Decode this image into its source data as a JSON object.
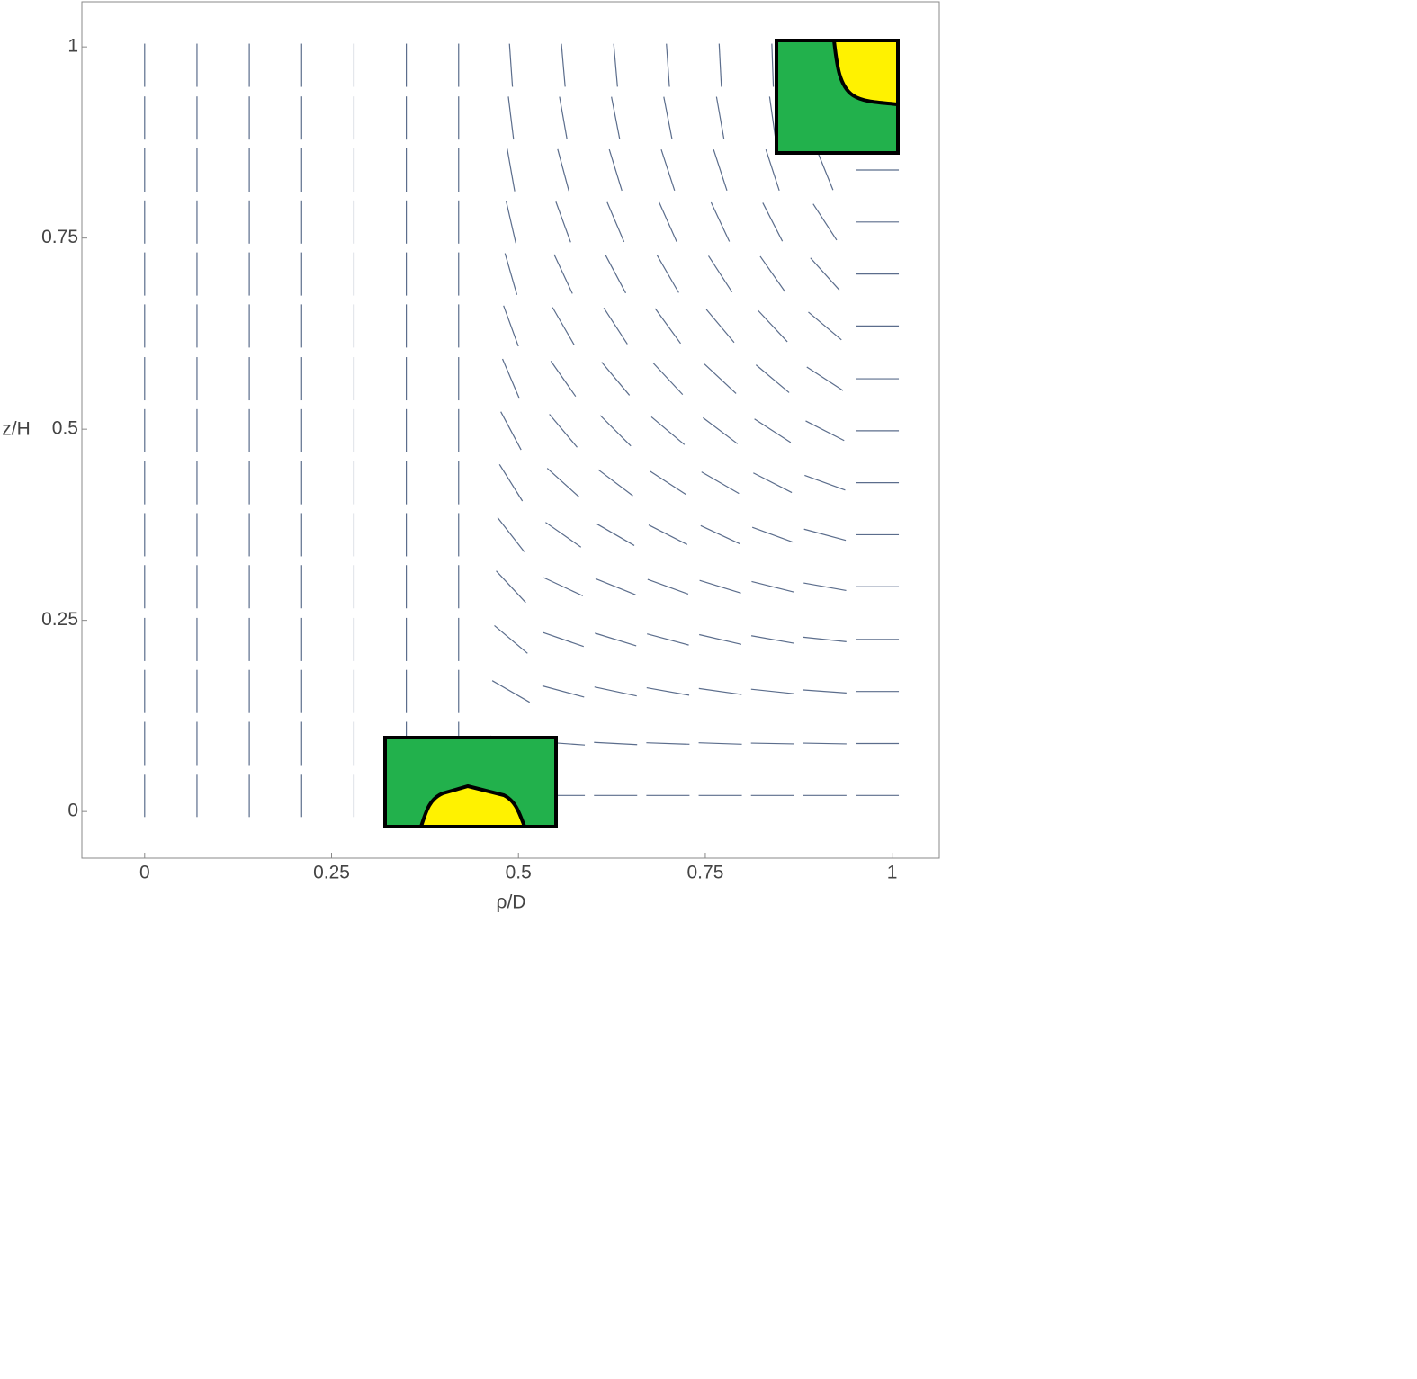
{
  "chart_data": {
    "type": "vector_field",
    "x_label": "ρ/D",
    "y_label": "z/H",
    "x": [
      0,
      0.07,
      0.14,
      0.21,
      0.28,
      0.35,
      0.42,
      0.49,
      0.56,
      0.63,
      0.7,
      0.77,
      0.84,
      0.91,
      0.98
    ],
    "y": [
      0.021,
      0.089,
      0.157,
      0.225,
      0.294,
      0.362,
      0.43,
      0.498,
      0.566,
      0.635,
      0.703,
      0.771,
      0.839,
      0.907,
      0.976
    ],
    "angle": [
      [
        90,
        90,
        90,
        90,
        90,
        90,
        90,
        0,
        0,
        0,
        0,
        0,
        0,
        0,
        0
      ],
      [
        90,
        90,
        90,
        90,
        90,
        90,
        90,
        -20,
        -4,
        -3,
        -2,
        -2,
        -1,
        -1,
        0
      ],
      [
        90,
        90,
        90,
        90,
        90,
        90,
        90,
        -30,
        -15,
        -12,
        -10,
        -8,
        -6,
        -4,
        0
      ],
      [
        90,
        90,
        90,
        90,
        90,
        90,
        90,
        -40,
        -19,
        -17,
        -15,
        -13,
        -10,
        -6,
        0
      ],
      [
        90,
        90,
        90,
        90,
        90,
        90,
        90,
        -47,
        -25,
        -22,
        -20,
        -17,
        -14,
        -10,
        0
      ],
      [
        90,
        90,
        90,
        90,
        90,
        90,
        90,
        -52,
        -35,
        -30,
        -27,
        -25,
        -20,
        -15,
        0
      ],
      [
        90,
        90,
        90,
        90,
        90,
        90,
        90,
        -58,
        -42,
        -37,
        -33,
        -30,
        -27,
        -20,
        0
      ],
      [
        90,
        90,
        90,
        90,
        90,
        90,
        90,
        -62,
        -50,
        -45,
        -40,
        -37,
        -33,
        -27,
        0
      ],
      [
        90,
        90,
        90,
        90,
        90,
        90,
        90,
        -67,
        -55,
        -50,
        -47,
        -43,
        -40,
        -33,
        0
      ],
      [
        90,
        90,
        90,
        90,
        90,
        90,
        90,
        -70,
        -60,
        -57,
        -54,
        -50,
        -47,
        -40,
        0
      ],
      [
        90,
        90,
        90,
        90,
        90,
        90,
        90,
        -74,
        -65,
        -62,
        -60,
        -57,
        -55,
        -48,
        0
      ],
      [
        90,
        90,
        90,
        90,
        90,
        90,
        90,
        -77,
        -70,
        -67,
        -66,
        -65,
        -63,
        -57,
        0
      ],
      [
        90,
        90,
        90,
        90,
        90,
        90,
        90,
        -80,
        -75,
        -73,
        -72,
        -72,
        -72,
        -68,
        0
      ],
      [
        90,
        90,
        90,
        90,
        90,
        90,
        90,
        -83,
        -80,
        -79,
        -79,
        -80,
        -82,
        -80,
        0
      ],
      [
        90,
        90,
        90,
        90,
        90,
        90,
        90,
        -86,
        -85,
        -85,
        -86,
        -87,
        -88,
        90,
        90
      ]
    ],
    "color": "#5b6d8c",
    "xlim": [
      -0.084,
      1.063
    ],
    "ylim": [
      -0.061,
      1.059
    ],
    "xticks": [
      0,
      0.25,
      0.5,
      0.75,
      1
    ],
    "yticks": [
      0,
      0.25,
      0.5,
      0.75,
      1
    ]
  }
}
